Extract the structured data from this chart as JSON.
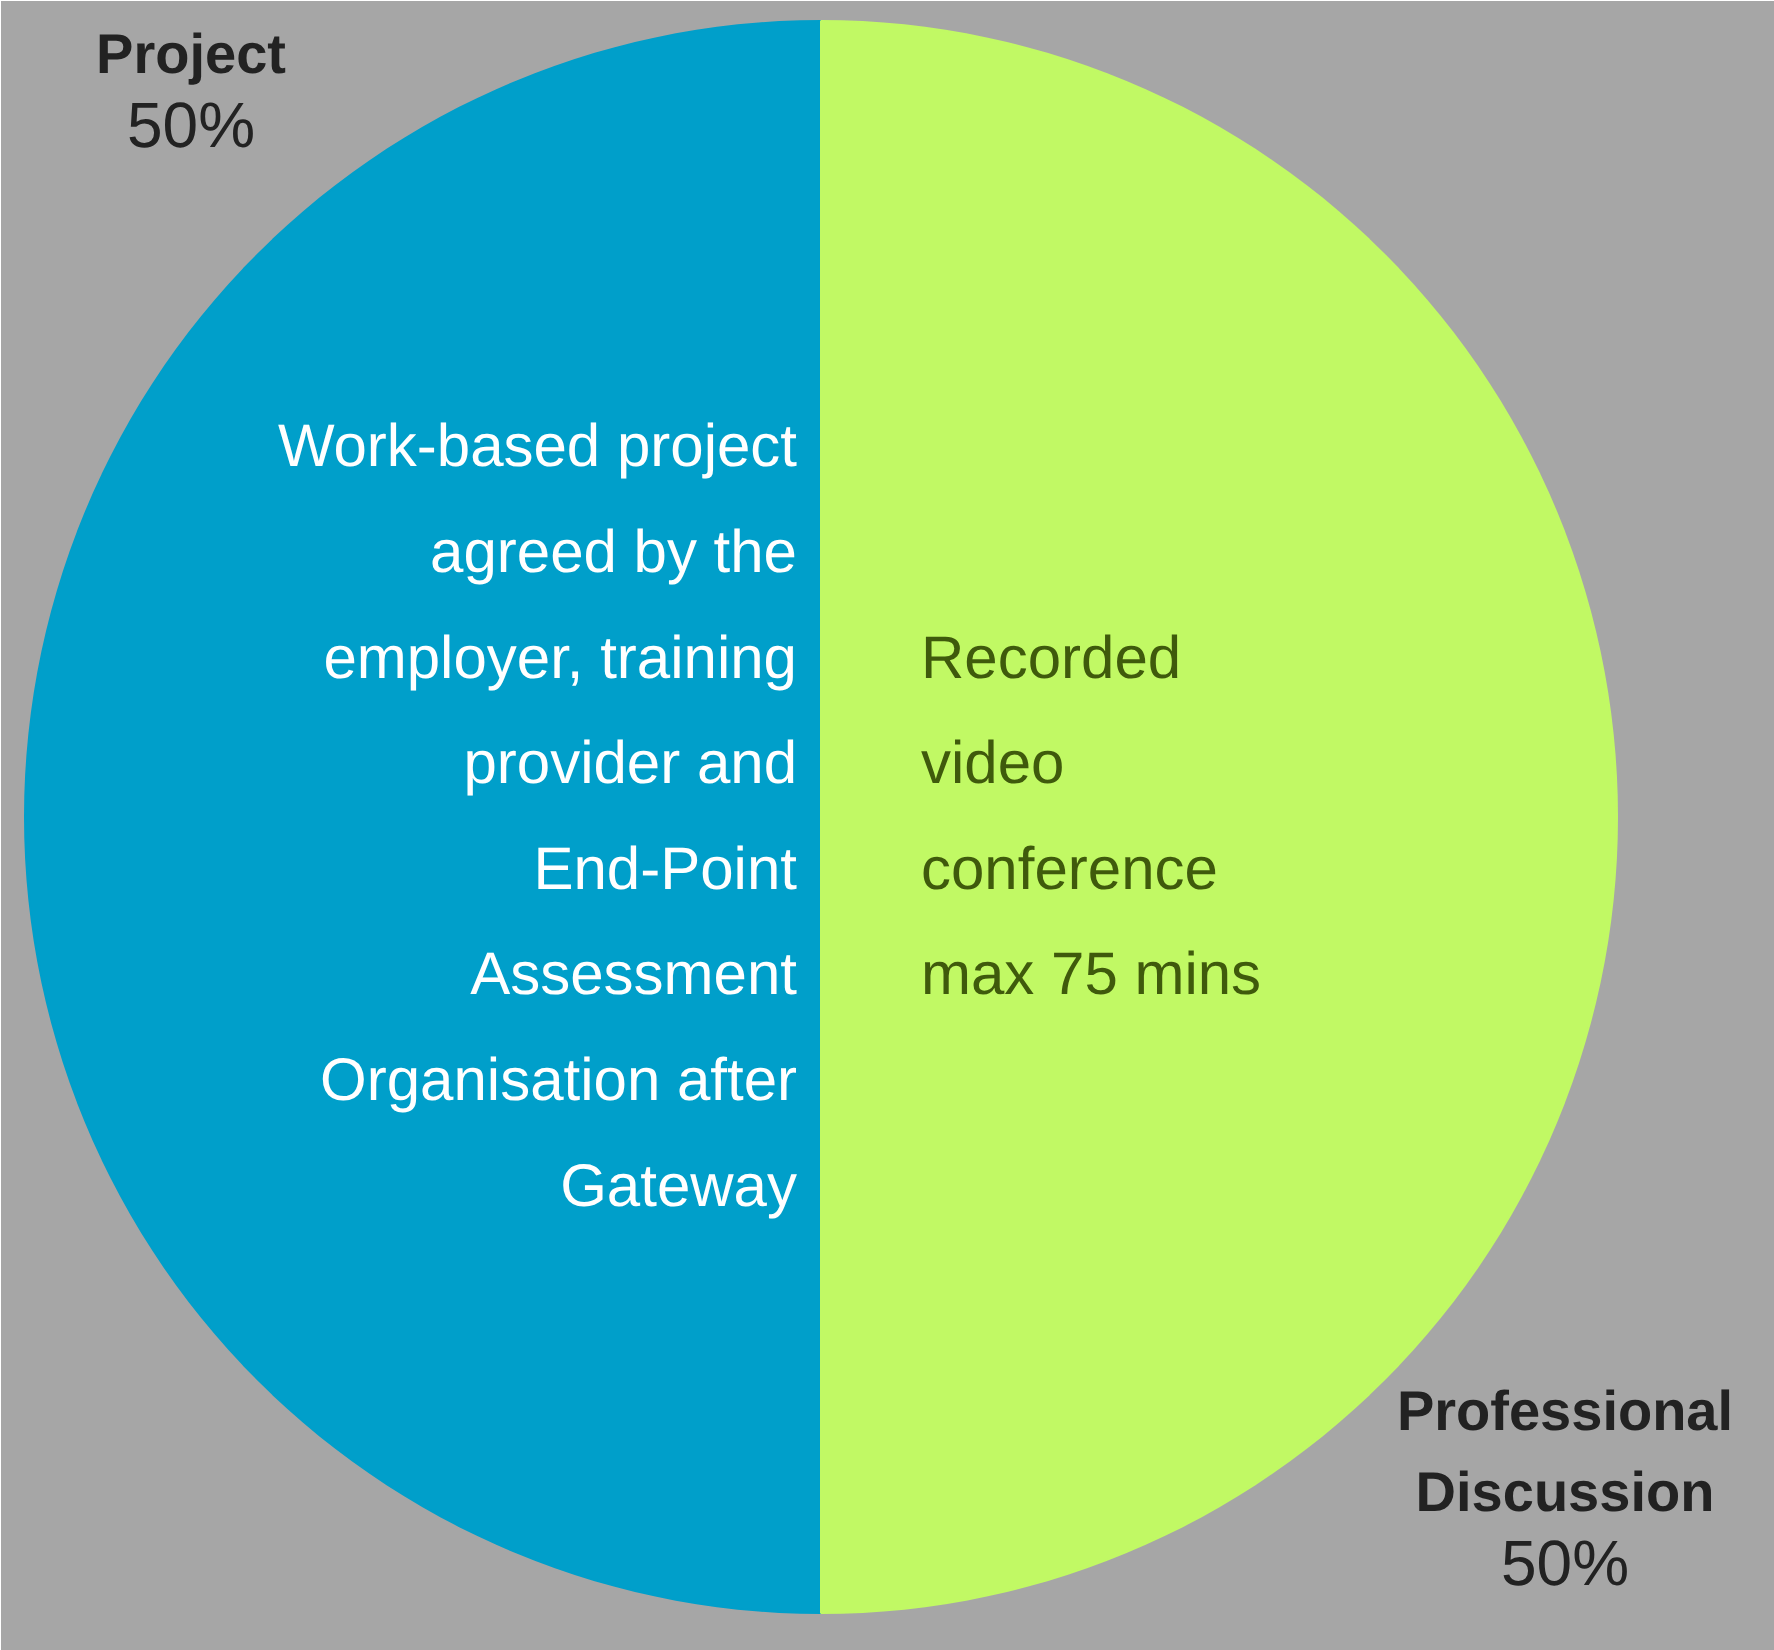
{
  "chart_data": {
    "type": "pie",
    "categories": [
      "Project",
      "Professional Discussion"
    ],
    "values": [
      50,
      50
    ],
    "colors": [
      "#009fca",
      "#c1f964"
    ],
    "value_labels": [
      "50%",
      "50%"
    ],
    "annotations": [
      "Work-based project agreed by the employer, training provider and End-Point Assessment Organisation after Gateway",
      "Recorded video conference max 75 mins"
    ],
    "legend": false
  }
}
